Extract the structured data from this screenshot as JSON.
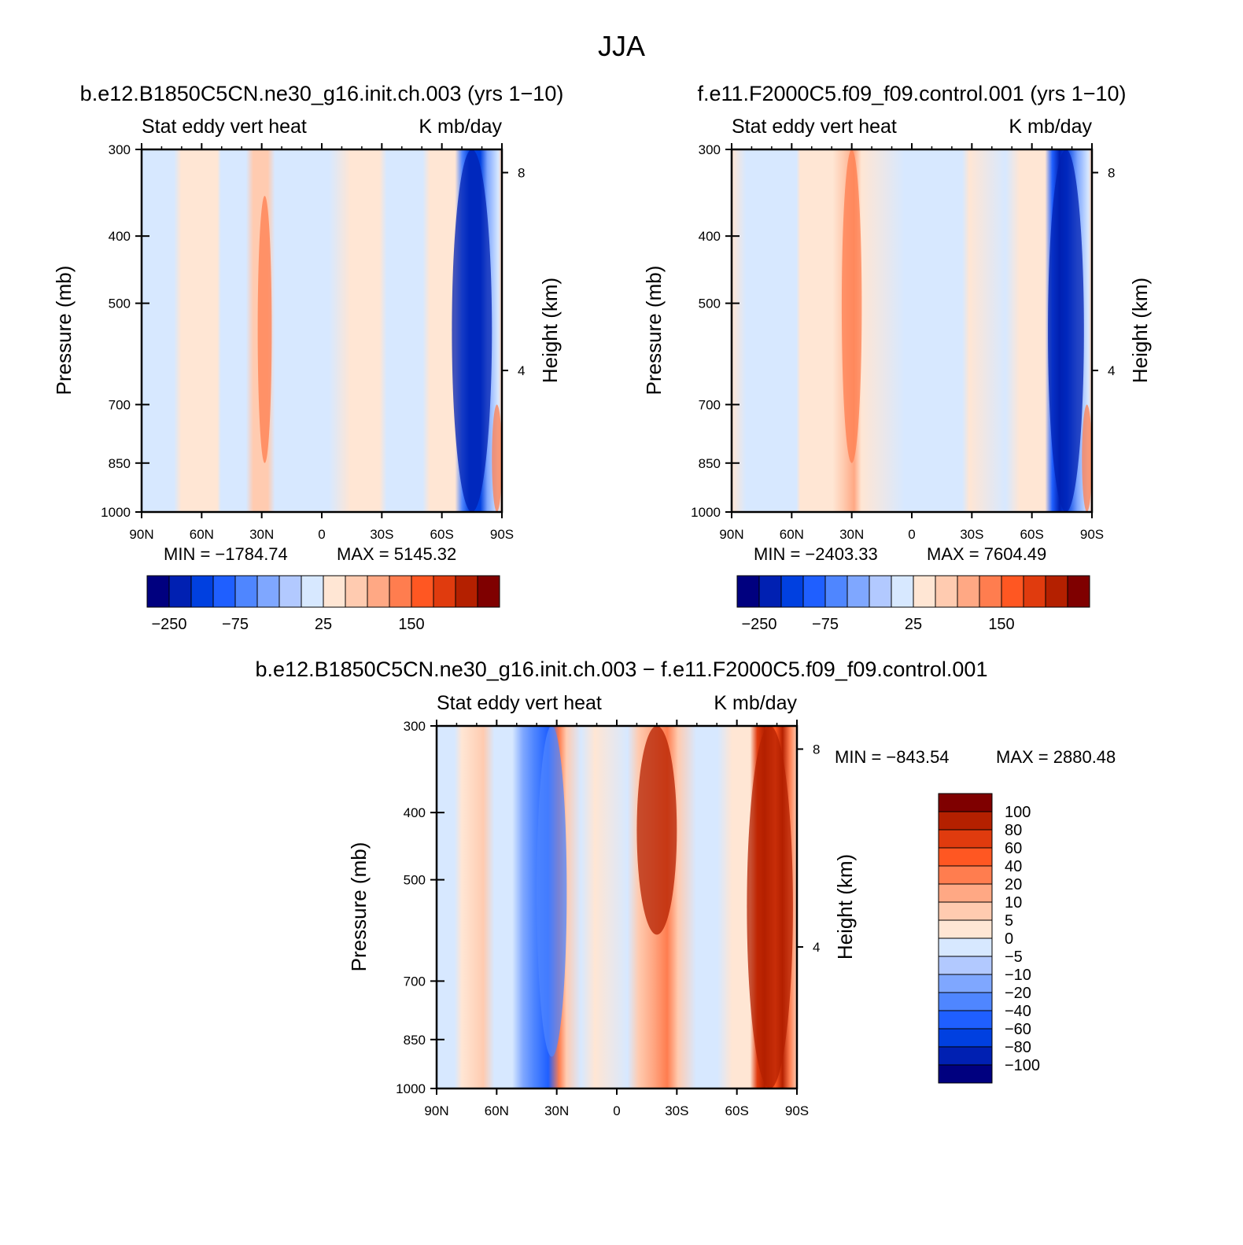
{
  "figure": {
    "title": "JJA",
    "diff_title": "b.e12.B1850C5CN.ne30_g16.init.ch.003 − f.e11.F2000C5.f09_f09.control.001"
  },
  "colors": {
    "main_scale": [
      "#00007f",
      "#0020b2",
      "#0040e0",
      "#1f5fff",
      "#4f86ff",
      "#7fa7ff",
      "#b2c9ff",
      "#d7e8ff",
      "#ffe6d4",
      "#ffcbb0",
      "#ffa884",
      "#ff7d4f",
      "#ff5722",
      "#e03b0e",
      "#b42000",
      "#7f0000"
    ],
    "diff_scale": [
      "#00007f",
      "#0020b2",
      "#0040e0",
      "#1f5fff",
      "#4f86ff",
      "#7fa7ff",
      "#b2c9ff",
      "#d7e8ff",
      "#ffe6d4",
      "#ffcbb0",
      "#ffa884",
      "#ff7d4f",
      "#ff5722",
      "#e03b0e",
      "#b42000",
      "#7f0000"
    ]
  },
  "chart_data": [
    {
      "type": "heatmap",
      "id": "panel1",
      "title": "b.e12.B1850C5CN.ne30_g16.init.ch.003 (yrs 1−10)",
      "left_title": "Stat eddy vert heat",
      "right_title": "K mb/day",
      "ylabel": "Pressure (mb)",
      "ylabel_right": "Height (km)",
      "x_ticks": [
        "90N",
        "60N",
        "30N",
        "0",
        "30S",
        "60S",
        "90S"
      ],
      "x_values": [
        90,
        60,
        30,
        0,
        -30,
        -60,
        -90
      ],
      "y_ticks": [
        "300",
        "400",
        "500",
        "700",
        "850",
        "1000"
      ],
      "y_values": [
        300,
        400,
        500,
        700,
        850,
        1000
      ],
      "y_scale": "log",
      "y_right_ticks": [
        "8",
        "4"
      ],
      "y_right_pressure": [
        324,
        625
      ],
      "min_label": "MIN = −1784.74",
      "max_label": "MAX = 5145.32",
      "colorbar": {
        "orientation": "horizontal",
        "levels": 16,
        "labels": [
          "−250",
          "−75",
          "25",
          "150"
        ],
        "label_after_box": [
          1,
          4,
          8,
          12
        ]
      },
      "features": [
        {
          "desc": "strong negative column",
          "lat_range": [
            -65,
            -85
          ],
          "p_range": [
            300,
            1000
          ],
          "sign": "negative"
        },
        {
          "desc": "positive maximum",
          "lat_range": [
            -85,
            -90
          ],
          "p_range": [
            700,
            1000
          ],
          "sign": "positive"
        },
        {
          "desc": "positive plume",
          "lat_range": [
            25,
            32
          ],
          "p_range": [
            350,
            850
          ],
          "sign": "positive"
        }
      ]
    },
    {
      "type": "heatmap",
      "id": "panel2",
      "title": "f.e11.F2000C5.f09_f09.control.001 (yrs 1−10)",
      "left_title": "Stat eddy vert heat",
      "right_title": "K mb/day",
      "ylabel": "Pressure (mb)",
      "ylabel_right": "Height (km)",
      "x_ticks": [
        "90N",
        "60N",
        "30N",
        "0",
        "30S",
        "60S",
        "90S"
      ],
      "x_values": [
        90,
        60,
        30,
        0,
        -30,
        -60,
        -90
      ],
      "y_ticks": [
        "300",
        "400",
        "500",
        "700",
        "850",
        "1000"
      ],
      "y_values": [
        300,
        400,
        500,
        700,
        850,
        1000
      ],
      "y_scale": "log",
      "y_right_ticks": [
        "8",
        "4"
      ],
      "y_right_pressure": [
        324,
        625
      ],
      "min_label": "MIN = −2403.33",
      "max_label": "MAX = 7604.49",
      "colorbar": {
        "orientation": "horizontal",
        "levels": 16,
        "labels": [
          "−250",
          "−75",
          "25",
          "150"
        ],
        "label_after_box": [
          1,
          4,
          8,
          12
        ]
      },
      "features": [
        {
          "desc": "strong negative column",
          "lat_range": [
            -68,
            -86
          ],
          "p_range": [
            300,
            1000
          ],
          "sign": "negative"
        },
        {
          "desc": "positive maximum",
          "lat_range": [
            -85,
            -90
          ],
          "p_range": [
            700,
            1000
          ],
          "sign": "positive"
        },
        {
          "desc": "positive plume",
          "lat_range": [
            25,
            35
          ],
          "p_range": [
            300,
            850
          ],
          "sign": "positive"
        }
      ]
    },
    {
      "type": "heatmap",
      "id": "panel3",
      "title": "b.e12.B1850C5CN.ne30_g16.init.ch.003 − f.e11.F2000C5.f09_f09.control.001",
      "left_title": "Stat eddy vert heat",
      "right_title": "K mb/day",
      "ylabel": "Pressure (mb)",
      "ylabel_right": "Height (km)",
      "x_ticks": [
        "90N",
        "60N",
        "30N",
        "0",
        "30S",
        "60S",
        "90S"
      ],
      "x_values": [
        90,
        60,
        30,
        0,
        -30,
        -60,
        -90
      ],
      "y_ticks": [
        "300",
        "400",
        "500",
        "700",
        "850",
        "1000"
      ],
      "y_values": [
        300,
        400,
        500,
        700,
        850,
        1000
      ],
      "y_scale": "log",
      "y_right_ticks": [
        "8",
        "4"
      ],
      "y_right_pressure": [
        324,
        625
      ],
      "min_label": "MIN = −843.54",
      "max_label": "MAX = 2880.48",
      "colorbar": {
        "orientation": "vertical",
        "levels": 16,
        "labels": [
          "100",
          "80",
          "60",
          "40",
          "20",
          "10",
          "5",
          "0",
          "−5",
          "−10",
          "−20",
          "−40",
          "−60",
          "−80",
          "−100"
        ]
      },
      "features": [
        {
          "desc": "strong positive column",
          "lat_range": [
            -65,
            -88
          ],
          "p_range": [
            300,
            1000
          ],
          "sign": "positive"
        },
        {
          "desc": "negative column",
          "lat_range": [
            25,
            40
          ],
          "p_range": [
            300,
            900
          ],
          "sign": "negative"
        },
        {
          "desc": "positive band",
          "lat_range": [
            -10,
            -30
          ],
          "p_range": [
            300,
            600
          ],
          "sign": "positive"
        }
      ]
    }
  ]
}
